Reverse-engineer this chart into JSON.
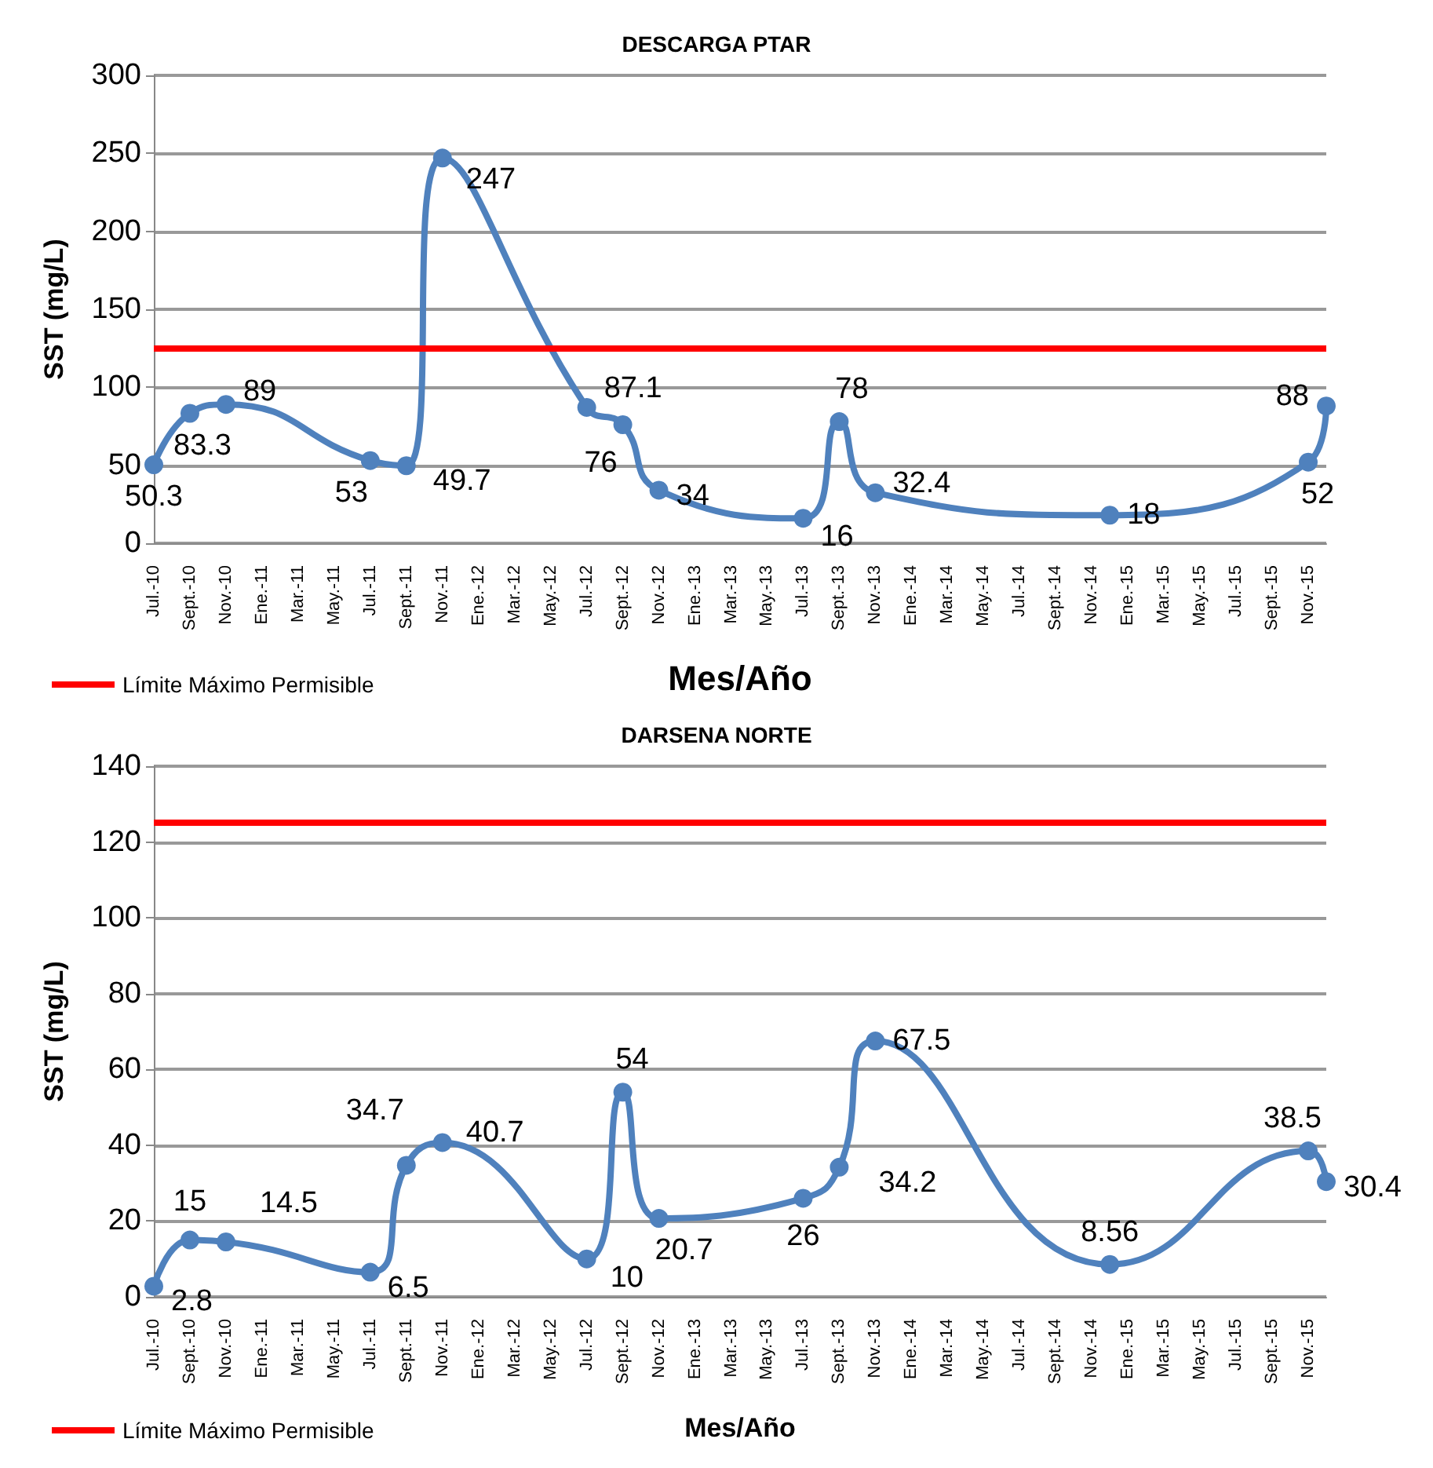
{
  "chart_data": [
    {
      "type": "line",
      "title": "DESCARGA PTAR",
      "xlabel": "Mes/Año",
      "ylabel": "SST (mg/L)",
      "categories": [
        "Jul.-10",
        null,
        "Sept.-10",
        null,
        "Nov.-10",
        null,
        "Ene.-11",
        null,
        "Mar.-11",
        null,
        "May.-11",
        null,
        "Jul.-11",
        null,
        "Sept.-11",
        null,
        "Nov.-11",
        null,
        "Ene.-12",
        null,
        "Mar.-12",
        null,
        "May.-12",
        null,
        "Jul.-12",
        null,
        "Sept.-12",
        null,
        "Nov.-12",
        null,
        "Ene.-13",
        null,
        "Mar.-13",
        null,
        "May.-13",
        null,
        "Jul.-13",
        null,
        "Sept.-13",
        null,
        "Nov.-13",
        null,
        "Ene.-14",
        null,
        "Mar.-14",
        null,
        "May.-14",
        null,
        "Jul.-14",
        null,
        "Sept.-14",
        null,
        "Nov.-14",
        null,
        "Ene.-15",
        null,
        "Mar.-15",
        null,
        "May.-15",
        null,
        "Jul.-15",
        null,
        "Sept.-15",
        null,
        "Nov.-15",
        null
      ],
      "series": [
        {
          "color": "#4f81bd",
          "values": [
            50.3,
            null,
            83.3,
            null,
            89,
            null,
            null,
            null,
            null,
            null,
            null,
            null,
            53,
            null,
            49.7,
            null,
            247,
            null,
            null,
            null,
            null,
            null,
            null,
            null,
            87.1,
            null,
            76,
            null,
            34,
            null,
            null,
            null,
            null,
            null,
            null,
            null,
            16,
            null,
            78,
            null,
            32.4,
            null,
            null,
            null,
            null,
            null,
            null,
            null,
            null,
            null,
            null,
            null,
            null,
            18,
            null,
            null,
            null,
            null,
            null,
            null,
            null,
            null,
            null,
            null,
            52,
            88
          ]
        }
      ],
      "ylim": [
        0,
        300
      ],
      "yticks": [
        0,
        50,
        100,
        150,
        200,
        250,
        300
      ],
      "grid": "y",
      "marker": "circle",
      "data_labels": true,
      "ref_lines": [
        {
          "axis": "y",
          "value": 125,
          "label": "Límite Máximo Permisible",
          "color": "#ff0000"
        }
      ],
      "legend": "bottom left"
    },
    {
      "type": "line",
      "title": "DARSENA NORTE",
      "xlabel": "Mes/Año",
      "ylabel": "SST (mg/L)",
      "categories": [
        "Jul.-10",
        null,
        "Sept.-10",
        null,
        "Nov.-10",
        null,
        "Ene.-11",
        null,
        "Mar.-11",
        null,
        "May.-11",
        null,
        "Jul.-11",
        null,
        "Sept.-11",
        null,
        "Nov.-11",
        null,
        "Ene.-12",
        null,
        "Mar.-12",
        null,
        "May.-12",
        null,
        "Jul.-12",
        null,
        "Sept.-12",
        null,
        "Nov.-12",
        null,
        "Ene.-13",
        null,
        "Mar.-13",
        null,
        "May.-13",
        null,
        "Jul.-13",
        null,
        "Sept.-13",
        null,
        "Nov.-13",
        null,
        "Ene.-14",
        null,
        "Mar.-14",
        null,
        "May.-14",
        null,
        "Jul.-14",
        null,
        "Sept.-14",
        null,
        "Nov.-14",
        null,
        "Ene.-15",
        null,
        "Mar.-15",
        null,
        "May.-15",
        null,
        "Jul.-15",
        null,
        "Sept.-15",
        null,
        "Nov.-15",
        null
      ],
      "series": [
        {
          "color": "#4f81bd",
          "values": [
            2.8,
            null,
            15,
            null,
            14.5,
            null,
            null,
            null,
            null,
            null,
            null,
            null,
            6.5,
            null,
            34.7,
            null,
            40.7,
            null,
            null,
            null,
            null,
            null,
            null,
            null,
            10,
            null,
            54,
            null,
            20.7,
            null,
            null,
            null,
            null,
            null,
            null,
            null,
            26,
            null,
            34.2,
            null,
            67.5,
            null,
            null,
            null,
            null,
            null,
            null,
            null,
            null,
            null,
            null,
            null,
            null,
            8.56,
            null,
            null,
            null,
            null,
            null,
            null,
            null,
            null,
            null,
            null,
            38.5,
            30.4
          ]
        }
      ],
      "ylim": [
        0,
        140
      ],
      "yticks": [
        0,
        20,
        40,
        60,
        80,
        100,
        120,
        140
      ],
      "grid": "y",
      "marker": "circle",
      "data_labels": true,
      "ref_lines": [
        {
          "axis": "y",
          "value": 125,
          "label": "Límite Máximo Permisible",
          "color": "#ff0000"
        }
      ],
      "legend": "bottom left"
    }
  ]
}
